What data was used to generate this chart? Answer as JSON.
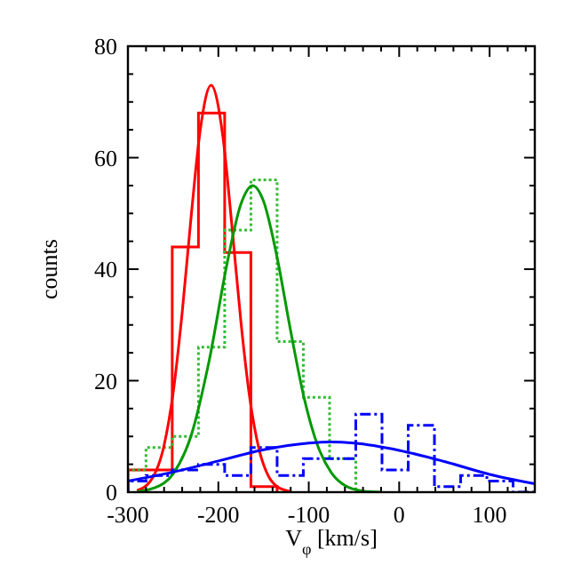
{
  "chart_data": {
    "type": "histogram",
    "xlabel": "V$_{φ}$ [km/s]",
    "ylabel": "counts",
    "xlim": [
      -300,
      150
    ],
    "ylim": [
      0,
      80
    ],
    "xticks": [
      -300,
      {
        "value": -280,
        "label": null
      },
      {
        "value": -260,
        "label": null
      },
      {
        "value": -240,
        "label": null
      },
      {
        "value": -220,
        "label": null
      },
      -200,
      {
        "value": -180,
        "label": null
      },
      {
        "value": -160,
        "label": null
      },
      {
        "value": -140,
        "label": null
      },
      {
        "value": -120,
        "label": null
      },
      -100,
      {
        "value": -80,
        "label": null
      },
      {
        "value": -60,
        "label": null
      },
      {
        "value": -40,
        "label": null
      },
      {
        "value": -20,
        "label": null
      },
      0,
      {
        "value": 20,
        "label": null
      },
      {
        "value": 40,
        "label": null
      },
      {
        "value": 60,
        "label": null
      },
      {
        "value": 80,
        "label": null
      },
      100,
      {
        "value": 120,
        "label": null
      },
      {
        "value": 140,
        "label": null
      }
    ],
    "yticks": [
      0,
      {
        "value": 5,
        "label": null
      },
      {
        "value": 10,
        "label": null
      },
      {
        "value": 15,
        "label": null
      },
      20,
      {
        "value": 25,
        "label": null
      },
      {
        "value": 30,
        "label": null
      },
      {
        "value": 35,
        "label": null
      },
      40,
      {
        "value": 45,
        "label": null
      },
      {
        "value": 50,
        "label": null
      },
      {
        "value": 55,
        "label": null
      },
      60,
      {
        "value": 65,
        "label": null
      },
      {
        "value": 70,
        "label": null
      },
      {
        "value": 75,
        "label": null
      },
      80
    ],
    "series": [
      {
        "color": "#ff0000",
        "line_style": "solid",
        "bins": [
          -300,
          -251,
          -222,
          -193,
          -164,
          -135
        ],
        "values": [
          4,
          44,
          68,
          43,
          1
        ]
      },
      {
        "color": "#33bb33",
        "line_style": "dotted",
        "bins": [
          -300,
          -280,
          -251,
          -222,
          -193,
          -164,
          -135,
          -106,
          -77,
          -48
        ],
        "values": [
          4,
          8,
          10,
          26,
          47,
          56,
          27,
          17,
          6
        ]
      },
      {
        "color": "#0000ff",
        "line_style": "dashed",
        "bins": [
          -300,
          -280,
          -251,
          -222,
          -193,
          -164,
          -135,
          -106,
          -77,
          -48,
          -19,
          10,
          39,
          68,
          97,
          126,
          150
        ],
        "values": [
          2,
          3,
          4,
          5,
          3,
          8,
          3,
          6,
          6,
          14,
          4,
          12,
          1,
          3,
          2,
          0
        ]
      },
      {
        "type": "line",
        "color": "#ff0000",
        "line_style": "solid",
        "x": [
          -290,
          -275,
          -260,
          -250,
          -240,
          -230,
          -220,
          -208,
          -195,
          -185,
          -175,
          -165,
          -155,
          -145,
          -135,
          -120
        ],
        "values": [
          0.3,
          2,
          8.4,
          17.8,
          32.2,
          49.6,
          65,
          73,
          63.8,
          47.8,
          30.5,
          16.6,
          7.7,
          3,
          1,
          0.1
        ]
      },
      {
        "type": "line",
        "color": "#009900",
        "line_style": "solid",
        "x": [
          -290,
          -270,
          -250,
          -230,
          -210,
          -190,
          -175,
          -162,
          -150,
          -135,
          -120,
          -105,
          -90,
          -75,
          -60,
          -40,
          -20
        ],
        "values": [
          0.1,
          0.8,
          3.3,
          10.2,
          23.7,
          41.3,
          51.7,
          55,
          52.2,
          42.1,
          28.9,
          16.8,
          8.3,
          3.5,
          1.2,
          0.2,
          0
        ]
      },
      {
        "type": "line",
        "color": "#0000ff",
        "line_style": "solid",
        "x": [
          -300,
          -250,
          -200,
          -150,
          -100,
          -75,
          -50,
          0,
          50,
          100,
          150
        ],
        "values": [
          2,
          3.6,
          5.6,
          7.6,
          8.8,
          9,
          8.8,
          7.5,
          5.5,
          3.2,
          1.5
        ]
      }
    ]
  }
}
